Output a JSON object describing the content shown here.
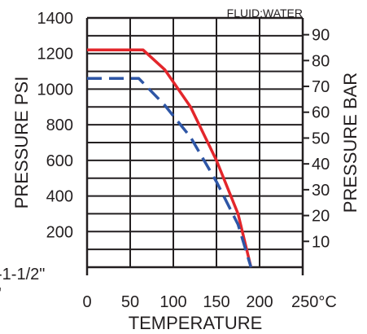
{
  "chart_data": {
    "type": "line",
    "annotation": "FLUID:WATER",
    "xlabel": "TEMPERATURE",
    "ylabel_left": "PRESSURE PSI",
    "ylabel_right": "PRESSURE BAR",
    "xlim": [
      0,
      250
    ],
    "ylim_left": [
      0,
      1400
    ],
    "ylim_right": [
      0,
      96.5
    ],
    "x_ticks": [
      "0",
      "50",
      "100",
      "150",
      "200",
      "250°C"
    ],
    "y_ticks_left": [
      "200",
      "400",
      "600",
      "800",
      "1000",
      "1200",
      "1400"
    ],
    "y_ticks_right": [
      "10",
      "20",
      "30",
      "40",
      "50",
      "60",
      "70",
      "80",
      "90"
    ],
    "grid": true,
    "series": [
      {
        "color": "#e3262b",
        "dash": "solid",
        "points": [
          [
            0,
            1220
          ],
          [
            65,
            1220
          ],
          [
            90,
            1110
          ],
          [
            120,
            900
          ],
          [
            150,
            600
          ],
          [
            175,
            300
          ],
          [
            190,
            0
          ]
        ]
      },
      {
        "color": "#2e56a6",
        "dash": "dashed",
        "points": [
          [
            0,
            1060
          ],
          [
            60,
            1060
          ],
          [
            90,
            910
          ],
          [
            120,
            730
          ],
          [
            150,
            480
          ],
          [
            175,
            240
          ],
          [
            190,
            0
          ]
        ]
      }
    ]
  },
  "side_fragments": [
    "-1-1/2\"",
    "'"
  ]
}
